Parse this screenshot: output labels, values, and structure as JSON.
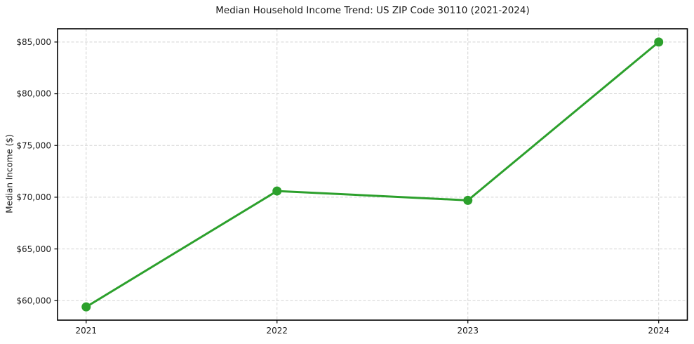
{
  "page": {
    "background_color": "#ffffff"
  },
  "chart_data": {
    "type": "line",
    "title": "Median Household Income Trend: US ZIP Code 30110 (2021-2024)",
    "xlabel": "",
    "ylabel": "Median Income ($)",
    "x": [
      2021,
      2022,
      2023,
      2024
    ],
    "series": [
      {
        "name": "Median Household Income",
        "values": [
          59400,
          70600,
          69700,
          85000
        ],
        "color": "#2ca02c",
        "marker": "circle"
      }
    ],
    "xticks": {
      "values": [
        2021,
        2022,
        2023,
        2024
      ],
      "labels": [
        "2021",
        "2022",
        "2023",
        "2024"
      ]
    },
    "yticks": {
      "values": [
        60000,
        65000,
        70000,
        75000,
        80000,
        85000
      ],
      "labels": [
        "$60,000",
        "$65,000",
        "$70,000",
        "$75,000",
        "$80,000",
        "$85,000"
      ]
    },
    "xlim": [
      2020.85,
      2024.15
    ],
    "ylim": [
      58120,
      86280
    ],
    "grid": {
      "show": true,
      "style": "dashed",
      "color": "#d4d4d4"
    },
    "legend": {
      "show": false
    },
    "line_width": 3,
    "marker_size": 6.5,
    "axis_color": "#000000",
    "tick_color": "#000000",
    "text_color": "#1a1a1a"
  }
}
